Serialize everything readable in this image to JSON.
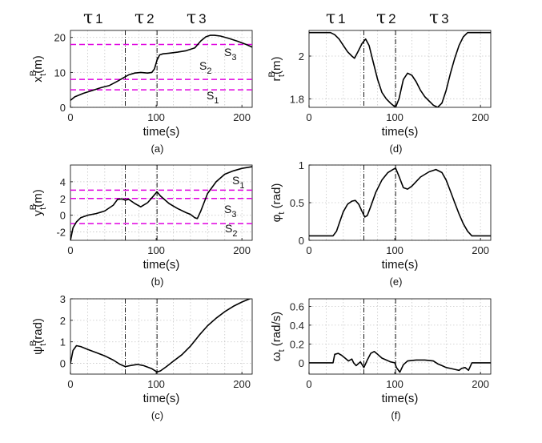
{
  "phase_labels": [
    "τ1",
    "τ2",
    "τ3"
  ],
  "chart_data": [
    {
      "id": "a",
      "type": "line",
      "caption": "(a)",
      "xlabel": "time(s)",
      "ylabel": "x_t^B(m)",
      "xlim": [
        0,
        212
      ],
      "ylim": [
        0,
        22
      ],
      "xticks": [
        0,
        100,
        200
      ],
      "yticks": [
        0,
        10,
        20
      ],
      "vlines": [
        64,
        101
      ],
      "hlines": [
        {
          "y": 18,
          "label": "S3"
        },
        {
          "y": 8,
          "label": "S2"
        },
        {
          "y": 5,
          "label": "S1"
        }
      ],
      "hline_color": "#e000e0",
      "series": [
        {
          "color": "#000000",
          "x": [
            0,
            5,
            15,
            25,
            35,
            45,
            55,
            62,
            68,
            75,
            82,
            90,
            95,
            98,
            101,
            104,
            108,
            115,
            125,
            135,
            145,
            152,
            158,
            163,
            168,
            175,
            185,
            195,
            205,
            212
          ],
          "y": [
            2,
            3,
            4,
            4.8,
            5.6,
            6.2,
            7.5,
            8.5,
            9.3,
            9.8,
            10,
            9.8,
            10,
            11,
            13.5,
            15,
            15.3,
            15.5,
            15.8,
            16.2,
            17,
            19,
            20.2,
            20.6,
            20.6,
            20.4,
            19.7,
            18.9,
            18,
            17.2
          ]
        }
      ]
    },
    {
      "id": "b",
      "type": "line",
      "caption": "(b)",
      "xlabel": "time(s)",
      "ylabel": "y_t^B(m)",
      "xlim": [
        0,
        212
      ],
      "ylim": [
        -3,
        6
      ],
      "xticks": [
        0,
        100,
        200
      ],
      "yticks": [
        -2,
        0,
        2,
        4
      ],
      "vlines": [
        64,
        101
      ],
      "hlines": [
        {
          "y": 3,
          "label": "S1"
        },
        {
          "y": 2,
          "label": "S3"
        },
        {
          "y": -1,
          "label": "S2"
        }
      ],
      "hline_color": "#e000e0",
      "series": [
        {
          "color": "#000000",
          "x": [
            0,
            3,
            7,
            12,
            20,
            30,
            40,
            50,
            55,
            60,
            64,
            68,
            75,
            82,
            90,
            96,
            101,
            105,
            115,
            125,
            135,
            140,
            145,
            148,
            152,
            160,
            170,
            180,
            190,
            200,
            212
          ],
          "y": [
            -3,
            -1.5,
            -0.8,
            -0.3,
            0,
            0.2,
            0.5,
            1.2,
            1.9,
            1.95,
            1.8,
            1.9,
            1.4,
            1,
            1.5,
            2.2,
            2.8,
            2.3,
            1.4,
            0.8,
            0.3,
            0.1,
            -0.3,
            -0.4,
            0.5,
            2.6,
            4,
            4.9,
            5.3,
            5.6,
            5.8
          ]
        }
      ]
    },
    {
      "id": "c",
      "type": "line",
      "caption": "(c)",
      "xlabel": "time(s)",
      "ylabel": "ψ_t^B(rad)",
      "xlim": [
        0,
        212
      ],
      "ylim": [
        -0.5,
        3
      ],
      "xticks": [
        0,
        100,
        200
      ],
      "yticks": [
        0,
        1,
        2,
        3
      ],
      "vlines": [
        64,
        101
      ],
      "hlines": [],
      "hline_color": "#e000e0",
      "series": [
        {
          "color": "#000000",
          "x": [
            0,
            3,
            7,
            12,
            20,
            30,
            40,
            50,
            58,
            64,
            70,
            78,
            85,
            95,
            101,
            105,
            112,
            120,
            130,
            140,
            150,
            160,
            170,
            180,
            190,
            200,
            212
          ],
          "y": [
            0,
            0.6,
            0.82,
            0.78,
            0.65,
            0.5,
            0.35,
            0.15,
            -0.05,
            -0.15,
            -0.1,
            -0.05,
            -0.1,
            -0.25,
            -0.4,
            -0.35,
            -0.15,
            0.1,
            0.4,
            0.8,
            1.3,
            1.75,
            2.1,
            2.4,
            2.65,
            2.85,
            3.05
          ]
        }
      ]
    },
    {
      "id": "d",
      "type": "line",
      "caption": "(d)",
      "xlabel": "time(s)",
      "ylabel": "r_t^B(m)",
      "xlim": [
        0,
        212
      ],
      "ylim": [
        1.76,
        2.12
      ],
      "xticks": [
        0,
        100,
        200
      ],
      "yticks": [
        1.8,
        2
      ],
      "vlines": [
        64,
        101
      ],
      "hlines": [],
      "hline_color": "#e000e0",
      "series": [
        {
          "color": "#000000",
          "x": [
            0,
            25,
            30,
            35,
            40,
            45,
            50,
            53,
            57,
            62,
            66,
            70,
            75,
            80,
            85,
            90,
            95,
            101,
            105,
            110,
            115,
            120,
            125,
            130,
            135,
            140,
            145,
            150,
            155,
            160,
            165,
            170,
            175,
            180,
            185,
            200,
            212
          ],
          "y": [
            2.11,
            2.11,
            2.1,
            2.08,
            2.05,
            2.02,
            2.0,
            1.99,
            2.02,
            2.06,
            2.08,
            2.05,
            1.97,
            1.89,
            1.83,
            1.8,
            1.78,
            1.76,
            1.8,
            1.89,
            1.92,
            1.91,
            1.88,
            1.84,
            1.81,
            1.79,
            1.77,
            1.76,
            1.78,
            1.84,
            1.92,
            1.99,
            2.05,
            2.09,
            2.11,
            2.11,
            2.11
          ]
        }
      ]
    },
    {
      "id": "e",
      "type": "line",
      "caption": "(e)",
      "xlabel": "time(s)",
      "ylabel": "φ_t (rad)",
      "xlim": [
        0,
        212
      ],
      "ylim": [
        0,
        1
      ],
      "xticks": [
        0,
        100,
        200
      ],
      "yticks": [
        0,
        0.5,
        1
      ],
      "vlines": [
        64,
        101
      ],
      "hlines": [],
      "hline_color": "#e000e0",
      "series": [
        {
          "color": "#000000",
          "x": [
            0,
            28,
            32,
            36,
            40,
            45,
            50,
            54,
            58,
            62,
            65,
            68,
            72,
            78,
            85,
            92,
            98,
            101,
            105,
            110,
            115,
            120,
            125,
            130,
            140,
            148,
            155,
            160,
            165,
            170,
            175,
            180,
            185,
            190,
            195,
            200,
            212
          ],
          "y": [
            0.06,
            0.06,
            0.12,
            0.25,
            0.38,
            0.48,
            0.52,
            0.53,
            0.48,
            0.38,
            0.31,
            0.33,
            0.45,
            0.64,
            0.8,
            0.9,
            0.94,
            0.96,
            0.85,
            0.7,
            0.68,
            0.72,
            0.78,
            0.84,
            0.91,
            0.94,
            0.9,
            0.8,
            0.65,
            0.5,
            0.35,
            0.22,
            0.12,
            0.06,
            0.06,
            0.06,
            0.06
          ]
        }
      ]
    },
    {
      "id": "f",
      "type": "line",
      "caption": "(f)",
      "xlabel": "time(s)",
      "ylabel": "ω_t (rad/s)",
      "xlim": [
        0,
        212
      ],
      "ylim": [
        -0.12,
        0.68
      ],
      "xticks": [
        0,
        100,
        200
      ],
      "yticks": [
        0,
        0.2,
        0.4,
        0.6
      ],
      "vlines": [
        64,
        101
      ],
      "hlines": [],
      "hline_color": "#e000e0",
      "series": [
        {
          "color": "#000000",
          "x": [
            0,
            28,
            30,
            34,
            38,
            42,
            46,
            50,
            52,
            55,
            60,
            64,
            68,
            72,
            76,
            80,
            85,
            90,
            95,
            100,
            102,
            106,
            110,
            115,
            125,
            135,
            145,
            150,
            155,
            160,
            165,
            170,
            175,
            178,
            182,
            186,
            190,
            200,
            212
          ],
          "y": [
            0,
            0,
            0.09,
            0.1,
            0.08,
            0.05,
            0.02,
            0.04,
            0.0,
            -0.03,
            0.01,
            -0.05,
            0.03,
            0.1,
            0.12,
            0.09,
            0.05,
            0.03,
            0.01,
            0.0,
            -0.05,
            -0.1,
            -0.02,
            0.02,
            0.03,
            0.03,
            0.02,
            -0.01,
            -0.03,
            -0.05,
            -0.06,
            -0.07,
            -0.08,
            -0.06,
            -0.05,
            -0.08,
            0.0,
            0.0,
            0.0
          ]
        }
      ]
    }
  ]
}
